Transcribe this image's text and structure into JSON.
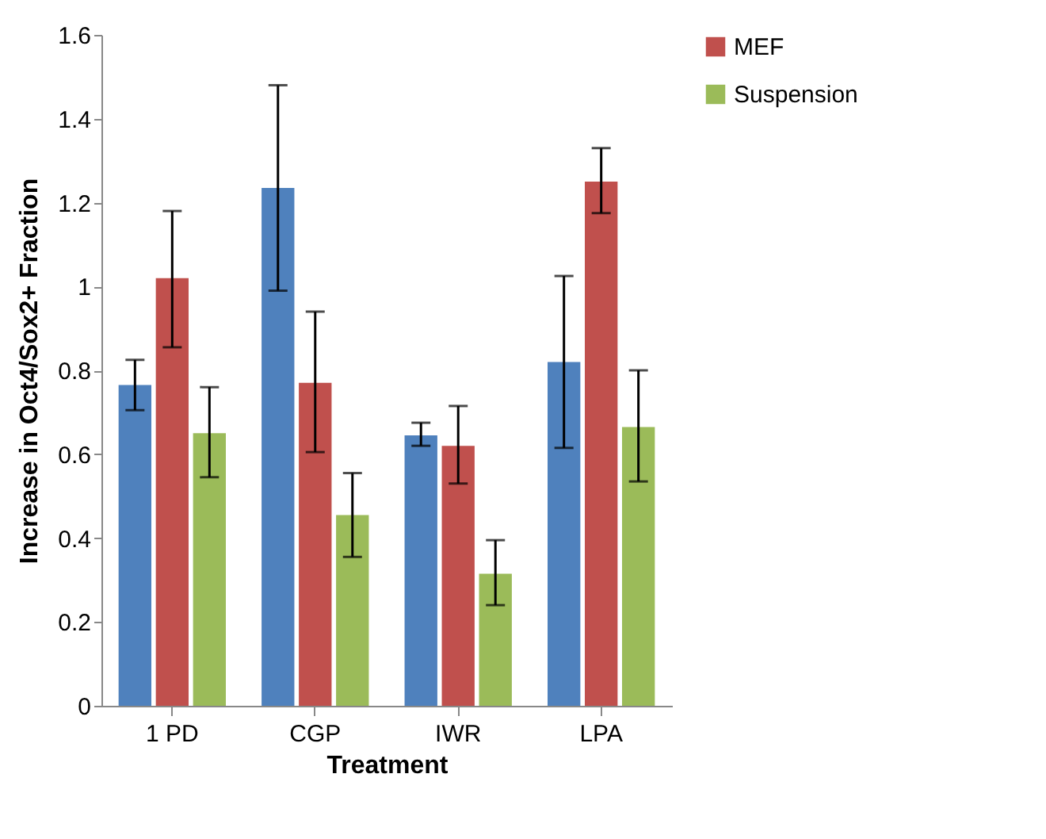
{
  "chart_data": {
    "type": "bar",
    "xlabel": "Treatment",
    "ylabel": "Increase in Oct4/Sox2+ Fraction",
    "categories": [
      "1 PD",
      "CGP",
      "IWR",
      "LPA"
    ],
    "series": [
      {
        "color": "#4f81bd",
        "values": [
          0.765,
          1.235,
          0.645,
          0.82
        ],
        "errors": [
          [
            0.705,
            0.825
          ],
          [
            0.99,
            1.48
          ],
          [
            0.62,
            0.675
          ],
          [
            0.615,
            1.025
          ]
        ]
      },
      {
        "name": "MEF",
        "color": "#c0504d",
        "values": [
          1.02,
          0.77,
          0.62,
          1.25
        ],
        "errors": [
          [
            0.855,
            1.18
          ],
          [
            0.605,
            0.94
          ],
          [
            0.53,
            0.715
          ],
          [
            1.175,
            1.33
          ]
        ]
      },
      {
        "name": "Suspension",
        "color": "#9bbb59",
        "values": [
          0.65,
          0.455,
          0.315,
          0.665
        ],
        "errors": [
          [
            0.545,
            0.76
          ],
          [
            0.355,
            0.555
          ],
          [
            0.24,
            0.395
          ],
          [
            0.535,
            0.8
          ]
        ]
      }
    ],
    "ylim": [
      0,
      1.6
    ],
    "yticks": [
      0,
      0.2,
      0.4,
      0.6,
      0.8,
      1,
      1.2,
      1.4,
      1.6
    ],
    "grid": false,
    "legend": "right"
  }
}
